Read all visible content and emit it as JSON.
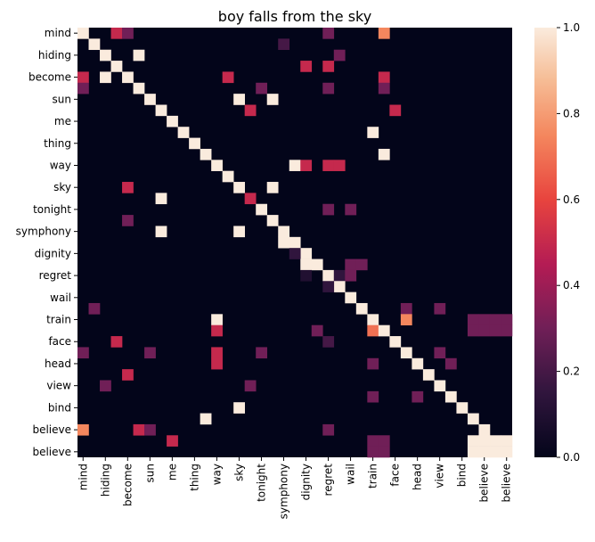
{
  "chart_data": {
    "type": "heatmap",
    "title": "boy falls from the sky",
    "xlabel": "",
    "ylabel": "",
    "labels": [
      "mind",
      "hiding",
      "become",
      "sun",
      "me",
      "thing",
      "way",
      "sky",
      "tonight",
      "symphony",
      "dignity",
      "regret",
      "wail",
      "train",
      "face",
      "head",
      "view",
      "bind",
      "believe",
      "believe"
    ],
    "x_tick_labels": [
      "mind",
      "hiding",
      "become",
      "sun",
      "me",
      "thing",
      "way",
      "sky",
      "tonight",
      "symphony",
      "dignity",
      "regret",
      "wail",
      "train",
      "face",
      "head",
      "view",
      "bind",
      "believe",
      "believe"
    ],
    "y_tick_labels": [
      "mind",
      "hiding",
      "become",
      "sun",
      "me",
      "thing",
      "way",
      "sky",
      "tonight",
      "symphony",
      "dignity",
      "regret",
      "wail",
      "train",
      "face",
      "head",
      "view",
      "bind",
      "believe",
      "believe"
    ],
    "n": 39,
    "value_range": [
      0,
      1
    ],
    "colorbar_ticks": [
      "0.0",
      "0.2",
      "0.4",
      "0.6",
      "0.8",
      "1.0"
    ],
    "colormap": "rocket",
    "cells": [
      [
        0,
        0,
        1.0
      ],
      [
        0,
        3,
        0.5
      ],
      [
        0,
        4,
        0.3
      ],
      [
        0,
        22,
        0.3
      ],
      [
        0,
        27,
        0.75
      ],
      [
        1,
        1,
        1.0
      ],
      [
        1,
        18,
        0.2
      ],
      [
        2,
        2,
        1.0
      ],
      [
        2,
        5,
        1.0
      ],
      [
        2,
        23,
        0.3
      ],
      [
        3,
        3,
        1.0
      ],
      [
        3,
        20,
        0.5
      ],
      [
        3,
        22,
        0.5
      ],
      [
        4,
        0,
        0.5
      ],
      [
        4,
        2,
        1.0
      ],
      [
        4,
        4,
        1.0
      ],
      [
        4,
        13,
        0.5
      ],
      [
        4,
        27,
        0.5
      ],
      [
        5,
        0,
        0.3
      ],
      [
        5,
        5,
        1.0
      ],
      [
        5,
        16,
        0.3
      ],
      [
        5,
        22,
        0.3
      ],
      [
        5,
        27,
        0.3
      ],
      [
        6,
        6,
        1.0
      ],
      [
        6,
        14,
        1.0
      ],
      [
        6,
        17,
        1.0
      ],
      [
        7,
        7,
        1.0
      ],
      [
        7,
        15,
        0.5
      ],
      [
        7,
        28,
        0.5
      ],
      [
        8,
        8,
        1.0
      ],
      [
        9,
        9,
        1.0
      ],
      [
        9,
        26,
        1.0
      ],
      [
        10,
        10,
        1.0
      ],
      [
        11,
        11,
        1.0
      ],
      [
        11,
        27,
        1.0
      ],
      [
        12,
        12,
        1.0
      ],
      [
        12,
        19,
        1.0
      ],
      [
        12,
        20,
        0.5
      ],
      [
        12,
        22,
        0.5
      ],
      [
        12,
        23,
        0.5
      ],
      [
        13,
        13,
        1.0
      ],
      [
        14,
        4,
        0.5
      ],
      [
        14,
        14,
        1.0
      ],
      [
        14,
        17,
        1.0
      ],
      [
        15,
        7,
        1.0
      ],
      [
        15,
        15,
        0.5
      ],
      [
        16,
        16,
        1.0
      ],
      [
        16,
        22,
        0.3
      ],
      [
        16,
        24,
        0.3
      ],
      [
        17,
        4,
        0.3
      ],
      [
        17,
        17,
        1.0
      ],
      [
        18,
        7,
        1.0
      ],
      [
        18,
        14,
        1.0
      ],
      [
        18,
        18,
        1.0
      ],
      [
        19,
        18,
        1.0
      ],
      [
        19,
        19,
        1.0
      ],
      [
        20,
        20,
        1.0
      ],
      [
        20,
        19,
        0.15
      ],
      [
        21,
        20,
        1.0
      ],
      [
        21,
        21,
        1.0
      ],
      [
        21,
        24,
        0.3
      ],
      [
        21,
        25,
        0.3
      ],
      [
        22,
        22,
        1.0
      ],
      [
        22,
        20,
        0.1
      ],
      [
        22,
        23,
        0.15
      ],
      [
        22,
        24,
        0.3
      ],
      [
        23,
        23,
        1.0
      ],
      [
        23,
        22,
        0.15
      ],
      [
        24,
        24,
        1.0
      ],
      [
        25,
        1,
        0.3
      ],
      [
        25,
        25,
        1.0
      ],
      [
        25,
        29,
        0.3
      ],
      [
        25,
        32,
        0.3
      ],
      [
        26,
        12,
        1.0
      ],
      [
        26,
        26,
        1.0
      ],
      [
        26,
        29,
        0.75
      ],
      [
        26,
        35,
        0.3
      ],
      [
        26,
        36,
        0.3
      ],
      [
        26,
        37,
        0.3
      ],
      [
        26,
        38,
        0.3
      ],
      [
        27,
        12,
        0.5
      ],
      [
        27,
        21,
        0.3
      ],
      [
        27,
        26,
        0.7
      ],
      [
        27,
        27,
        1.0
      ],
      [
        27,
        35,
        0.3
      ],
      [
        27,
        36,
        0.3
      ],
      [
        27,
        37,
        0.3
      ],
      [
        27,
        38,
        0.3
      ],
      [
        28,
        3,
        0.5
      ],
      [
        28,
        22,
        0.2
      ],
      [
        28,
        28,
        1.0
      ],
      [
        29,
        29,
        1.0
      ],
      [
        29,
        0,
        0.3
      ],
      [
        29,
        6,
        0.3
      ],
      [
        29,
        12,
        0.5
      ],
      [
        29,
        16,
        0.3
      ],
      [
        29,
        32,
        0.3
      ],
      [
        30,
        12,
        0.5
      ],
      [
        30,
        26,
        0.3
      ],
      [
        30,
        30,
        1.0
      ],
      [
        30,
        33,
        0.3
      ],
      [
        31,
        4,
        0.5
      ],
      [
        31,
        31,
        1.0
      ],
      [
        32,
        2,
        0.3
      ],
      [
        32,
        15,
        0.3
      ],
      [
        32,
        32,
        1.0
      ],
      [
        33,
        26,
        0.3
      ],
      [
        33,
        30,
        0.3
      ],
      [
        33,
        33,
        1.0
      ],
      [
        34,
        14,
        1.0
      ],
      [
        34,
        34,
        1.0
      ],
      [
        35,
        11,
        1.0
      ],
      [
        35,
        35,
        1.0
      ],
      [
        36,
        0,
        0.75
      ],
      [
        36,
        5,
        0.5
      ],
      [
        36,
        6,
        0.3
      ],
      [
        36,
        22,
        0.3
      ],
      [
        36,
        36,
        1.0
      ],
      [
        37,
        8,
        0.5
      ],
      [
        37,
        37,
        1.0
      ],
      [
        38,
        26,
        0.3
      ],
      [
        38,
        27,
        0.3
      ],
      [
        38,
        35,
        1.0
      ],
      [
        38,
        36,
        1.0
      ],
      [
        38,
        37,
        1.0
      ],
      [
        38,
        38,
        1.0
      ],
      [
        37,
        26,
        0.3
      ],
      [
        37,
        27,
        0.3
      ],
      [
        37,
        35,
        1.0
      ],
      [
        37,
        36,
        1.0
      ],
      [
        37,
        38,
        1.0
      ]
    ]
  }
}
